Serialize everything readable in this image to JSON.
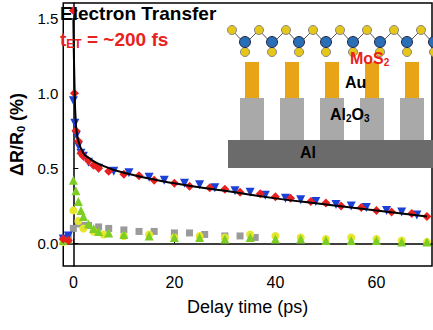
{
  "chart_data": {
    "type": "scatter",
    "title": "Electron Transfer",
    "annotations": [
      {
        "parts": [
          "t",
          {
            "sub": "ET"
          },
          " = ~200 fs"
        ],
        "color": "#e8221c"
      }
    ],
    "x_label": "Delay time (ps)",
    "y_label": [
      "ΔR/R",
      {
        "sub": "0"
      },
      " (%)"
    ],
    "xlim": [
      -2,
      71
    ],
    "ylim": [
      -0.15,
      1.6
    ],
    "xticks": [
      0,
      20,
      40,
      60
    ],
    "yticks": [
      {
        "value": 0,
        "label": "0.0"
      },
      {
        "value": 0.5,
        "label": "0.5"
      },
      {
        "value": 1,
        "label": "1.0"
      },
      {
        "value": 1.5,
        "label": "1.5"
      }
    ],
    "grid": false,
    "series": [
      {
        "type": "scatter",
        "color": "#9a9a9a",
        "marker": "square",
        "x": [
          -2,
          -1,
          0,
          1,
          2,
          3,
          5,
          7,
          10,
          13,
          16,
          20,
          23,
          26,
          30,
          33,
          36
        ],
        "values": [
          0.03,
          0.05,
          0.1,
          0.13,
          0.12,
          0.12,
          0.11,
          0.1,
          0.09,
          0.08,
          0.08,
          0.07,
          0.07,
          0.06,
          0.05,
          0.05,
          0.04
        ]
      },
      {
        "type": "scatter",
        "color": "#e6e62e",
        "marker": "circle",
        "x": [
          -2,
          0,
          1,
          2,
          4,
          6,
          10,
          15,
          20,
          25,
          30,
          35,
          40,
          45,
          50,
          55,
          60,
          65,
          70
        ],
        "values": [
          0.01,
          0.22,
          0.15,
          0.1,
          0.08,
          0.06,
          0.05,
          0.06,
          0.04,
          0.05,
          0.04,
          0.06,
          0.05,
          0.04,
          0.03,
          0.04,
          0.03,
          0.02,
          0.01
        ]
      },
      {
        "type": "scatter",
        "color": "#7ccf22",
        "marker": "triangle-up",
        "x": [
          -2,
          -1,
          0,
          0.5,
          1,
          1.5,
          2,
          3,
          4,
          5,
          7,
          10,
          15,
          20,
          25,
          30,
          35,
          40,
          45,
          50,
          55,
          60,
          65,
          70
        ],
        "values": [
          0.02,
          0.03,
          0.42,
          0.35,
          0.28,
          0.22,
          0.18,
          0.13,
          0.1,
          0.08,
          0.07,
          0.06,
          0.05,
          0.04,
          0.04,
          0.03,
          0.04,
          0.03,
          0.03,
          0.02,
          0.02,
          0.02,
          0.01,
          0.01
        ]
      },
      {
        "type": "scatter",
        "color": "#1c3fd6",
        "marker": "triangle-down",
        "x": [
          -2,
          -1,
          0,
          0.3,
          0.6,
          1,
          1.5,
          2,
          3,
          5,
          8,
          11,
          15,
          18,
          22,
          25,
          28,
          32,
          35,
          38,
          42,
          45,
          48,
          52,
          55,
          58,
          62,
          65,
          68
        ],
        "values": [
          0.03,
          0.05,
          0.95,
          0.8,
          0.72,
          0.65,
          0.6,
          0.58,
          0.54,
          0.5,
          0.48,
          0.47,
          0.44,
          0.42,
          0.4,
          0.39,
          0.37,
          0.35,
          0.34,
          0.32,
          0.3,
          0.29,
          0.28,
          0.26,
          0.25,
          0.24,
          0.22,
          0.21,
          0.19
        ]
      },
      {
        "type": "scatter",
        "color": "#e82020",
        "marker": "diamond",
        "x": [
          -2,
          -1,
          0,
          0.2,
          0.5,
          1,
          1.5,
          2,
          3,
          4,
          5,
          7,
          10,
          13,
          16,
          20,
          23,
          27,
          30,
          33,
          37,
          40,
          43,
          47,
          50,
          53,
          57,
          60,
          63,
          67,
          70
        ],
        "values": [
          0.03,
          0.02,
          1.55,
          1.0,
          0.75,
          0.68,
          0.6,
          0.58,
          0.55,
          0.52,
          0.5,
          0.48,
          0.46,
          0.45,
          0.42,
          0.4,
          0.38,
          0.37,
          0.36,
          0.34,
          0.33,
          0.31,
          0.3,
          0.28,
          0.27,
          0.25,
          0.24,
          0.22,
          0.21,
          0.2,
          0.18
        ]
      },
      {
        "type": "line",
        "color": "#000000",
        "line_style": "solid",
        "x": [
          0,
          0.2,
          0.5,
          1,
          2,
          3,
          5,
          10,
          20,
          30,
          40,
          50,
          60,
          70
        ],
        "values": [
          1.5,
          1.1,
          0.8,
          0.68,
          0.6,
          0.57,
          0.53,
          0.47,
          0.4,
          0.35,
          0.3,
          0.26,
          0.22,
          0.18
        ]
      }
    ],
    "inset": {
      "labels": [
        {
          "parts": [
            "MoS",
            {
              "sub": "2"
            }
          ],
          "color": "#e8221c"
        },
        {
          "parts": [
            "Au"
          ],
          "color": "#000000"
        },
        {
          "parts": [
            "Al",
            {
              "sub": "2"
            },
            "O",
            {
              "sub": "3"
            }
          ],
          "color": "#000000"
        },
        {
          "parts": [
            "Al"
          ],
          "color": "#000000"
        }
      ]
    }
  }
}
